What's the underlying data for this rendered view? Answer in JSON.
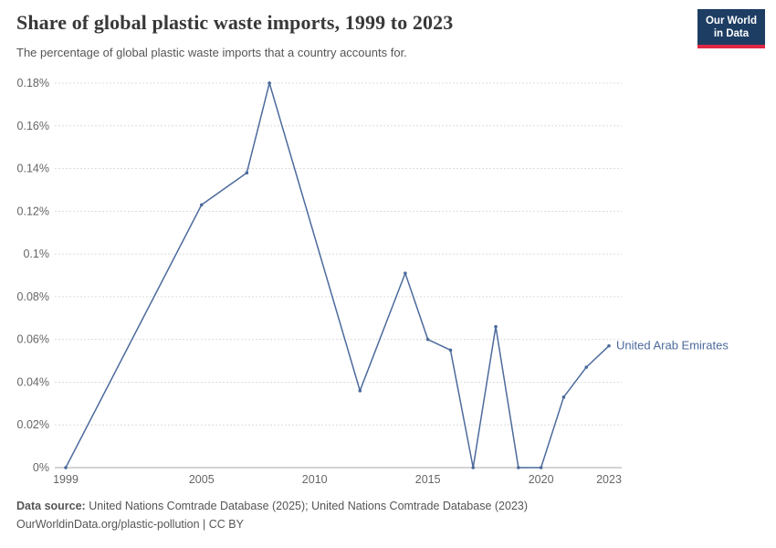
{
  "chart_data": {
    "type": "line",
    "title": "Share of global plastic waste imports, 1999 to 2023",
    "subtitle": "The percentage of global plastic waste imports that a country accounts for.",
    "xlabel": "",
    "ylabel": "",
    "xlim": [
      1999,
      2023
    ],
    "ylim": [
      0,
      0.18
    ],
    "xticks": [
      1999,
      2005,
      2010,
      2015,
      2020,
      2023
    ],
    "yticks": [
      0,
      0.02,
      0.04,
      0.06,
      0.08,
      0.1,
      0.12,
      0.14,
      0.16,
      0.18
    ],
    "ytick_labels": [
      "0%",
      "0.02%",
      "0.04%",
      "0.06%",
      "0.08%",
      "0.1%",
      "0.12%",
      "0.14%",
      "0.16%",
      "0.18%"
    ],
    "grid": "horizontal-dashed",
    "legend": "end-of-line-label",
    "series": [
      {
        "name": "United Arab Emirates",
        "color": "#4c6a9c",
        "points": [
          [
            1999,
            0
          ],
          [
            2005,
            0.123
          ],
          [
            2007,
            0.138
          ],
          [
            2008,
            0.18
          ],
          [
            2012,
            0.036
          ],
          [
            2014,
            0.091
          ],
          [
            2015,
            0.06
          ],
          [
            2016,
            0.055
          ],
          [
            2017,
            0
          ],
          [
            2018,
            0.066
          ],
          [
            2019,
            0
          ],
          [
            2020,
            0
          ],
          [
            2021,
            0.033
          ],
          [
            2022,
            0.047
          ],
          [
            2023,
            0.057
          ]
        ]
      }
    ],
    "end_label": "United Arab Emirates"
  },
  "logo": {
    "line1": "Our World",
    "line2": "in Data",
    "bg": "#1d3d63",
    "accent": "#e02745"
  },
  "footer": {
    "source_label": "Data source:",
    "source_text": " United Nations Comtrade Database (2025); United Nations Comtrade Database (2023)",
    "note": "OurWorldinData.org/plastic-pollution | CC BY"
  }
}
